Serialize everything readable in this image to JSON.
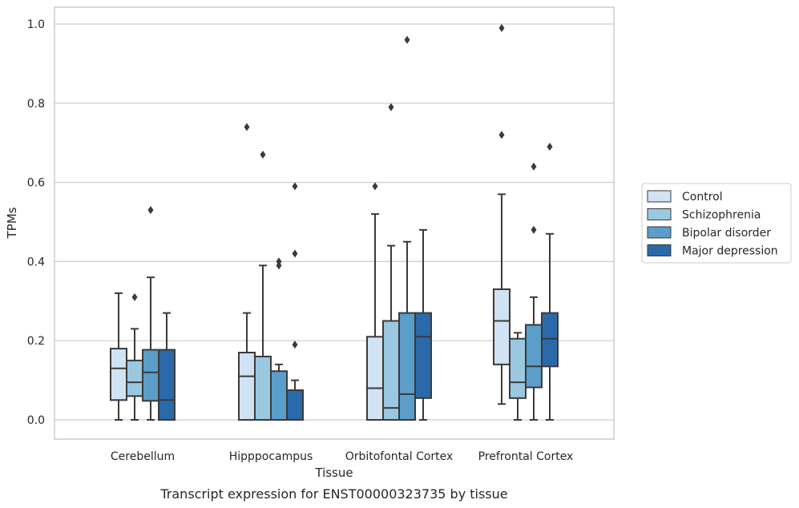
{
  "chart_data": {
    "type": "box",
    "xlabel": "Tissue",
    "ylabel": "TPMs",
    "caption": "Transcript expression for ENST00000323735 by tissue",
    "categories": [
      "Cerebellum",
      "Hipppocampus",
      "Orbitofontal Cortex",
      "Prefrontal Cortex"
    ],
    "ylim": [
      -0.05,
      1.04
    ],
    "yticks": [
      "0.0",
      "0.2",
      "0.4",
      "0.6",
      "0.8",
      "1.0"
    ],
    "grid": "horizontal",
    "legend_position": "right",
    "series": [
      {
        "name": "Control",
        "color": "#d1e2f2",
        "boxes": [
          {
            "whisker_low": 0.0,
            "q1": 0.05,
            "median": 0.13,
            "q3": 0.18,
            "whisker_high": 0.32,
            "outliers": []
          },
          {
            "whisker_low": 0.0,
            "q1": 0.0,
            "median": 0.11,
            "q3": 0.17,
            "whisker_high": 0.27,
            "outliers": [
              0.74
            ]
          },
          {
            "whisker_low": 0.0,
            "q1": 0.0,
            "median": 0.08,
            "q3": 0.21,
            "whisker_high": 0.52,
            "outliers": [
              0.59
            ]
          },
          {
            "whisker_low": 0.04,
            "q1": 0.14,
            "median": 0.25,
            "q3": 0.33,
            "whisker_high": 0.57,
            "outliers": [
              0.72,
              0.99
            ]
          }
        ]
      },
      {
        "name": "Schizophrenia",
        "color": "#9ac8e0",
        "boxes": [
          {
            "whisker_low": 0.0,
            "q1": 0.06,
            "median": 0.095,
            "q3": 0.15,
            "whisker_high": 0.23,
            "outliers": [
              0.31
            ]
          },
          {
            "whisker_low": 0.0,
            "q1": 0.0,
            "median": 0.0,
            "q3": 0.16,
            "whisker_high": 0.39,
            "outliers": [
              0.67
            ]
          },
          {
            "whisker_low": 0.0,
            "q1": 0.0,
            "median": 0.03,
            "q3": 0.25,
            "whisker_high": 0.44,
            "outliers": [
              0.79
            ]
          },
          {
            "whisker_low": 0.0,
            "q1": 0.055,
            "median": 0.095,
            "q3": 0.205,
            "whisker_high": 0.22,
            "outliers": []
          }
        ]
      },
      {
        "name": "Bipolar disorder",
        "color": "#5a9ec9",
        "boxes": [
          {
            "whisker_low": 0.0,
            "q1": 0.048,
            "median": 0.12,
            "q3": 0.177,
            "whisker_high": 0.36,
            "outliers": [
              0.53
            ]
          },
          {
            "whisker_low": 0.0,
            "q1": 0.0,
            "median": 0.0,
            "q3": 0.123,
            "whisker_high": 0.14,
            "outliers": [
              0.39,
              0.4
            ]
          },
          {
            "whisker_low": 0.0,
            "q1": 0.0,
            "median": 0.065,
            "q3": 0.27,
            "whisker_high": 0.45,
            "outliers": [
              0.96
            ]
          },
          {
            "whisker_low": 0.0,
            "q1": 0.082,
            "median": 0.135,
            "q3": 0.24,
            "whisker_high": 0.31,
            "outliers": [
              0.48,
              0.64
            ]
          }
        ]
      },
      {
        "name": "Major depression",
        "color": "#2a6aab",
        "boxes": [
          {
            "whisker_low": 0.0,
            "q1": 0.0,
            "median": 0.05,
            "q3": 0.177,
            "whisker_high": 0.27,
            "outliers": []
          },
          {
            "whisker_low": 0.0,
            "q1": 0.0,
            "median": 0.0,
            "q3": 0.075,
            "whisker_high": 0.1,
            "outliers": [
              0.19,
              0.42,
              0.59
            ]
          },
          {
            "whisker_low": 0.0,
            "q1": 0.055,
            "median": 0.21,
            "q3": 0.27,
            "whisker_high": 0.48,
            "outliers": []
          },
          {
            "whisker_low": 0.0,
            "q1": 0.135,
            "median": 0.205,
            "q3": 0.27,
            "whisker_high": 0.47,
            "outliers": [
              0.69
            ]
          }
        ]
      }
    ]
  },
  "colors": {
    "edge": "#3a3a3a",
    "grid": "#cccccc",
    "frame": "#cccccc"
  }
}
